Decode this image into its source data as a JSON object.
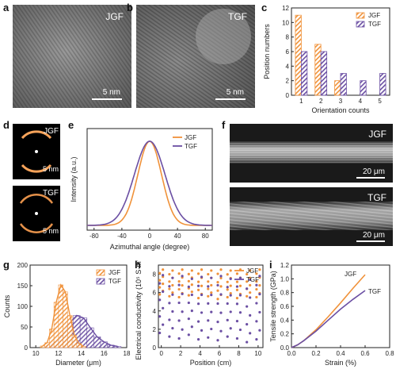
{
  "panels": {
    "a": {
      "letter": "a",
      "label": "JGF",
      "scale": "5 nm"
    },
    "b": {
      "letter": "b",
      "label": "TGF",
      "scale": "5 nm"
    },
    "d": {
      "letter": "d",
      "top_label": "JGF",
      "bottom_label": "TGF",
      "scale": "5 nm"
    },
    "f": {
      "letter": "f",
      "top_label": "JGF",
      "bottom_label": "TGF",
      "scale": "20 μm"
    },
    "c": {
      "letter": "c"
    },
    "e": {
      "letter": "e"
    },
    "g": {
      "letter": "g"
    },
    "h": {
      "letter": "h"
    },
    "i": {
      "letter": "i"
    }
  },
  "colors": {
    "jgf": "#f0923a",
    "tgf": "#6b4fa3"
  },
  "chart_data": [
    {
      "id": "c",
      "type": "bar",
      "xlabel": "Orientation counts",
      "ylabel": "Position numbers",
      "categories": [
        "1",
        "2",
        "3",
        "4",
        "5"
      ],
      "ylim": [
        0,
        12
      ],
      "yticks": [
        "0",
        "2",
        "4",
        "6",
        "8",
        "10",
        "12"
      ],
      "legend": "top-right",
      "series": [
        {
          "name": "JGF",
          "values": [
            11,
            7,
            2,
            0,
            0
          ]
        },
        {
          "name": "TGF",
          "values": [
            6,
            6,
            3,
            2,
            3
          ]
        }
      ]
    },
    {
      "id": "e",
      "type": "line",
      "xlabel": "Azimuthal angle (degree)",
      "ylabel": "Intensity (a.u.)",
      "xlim": [
        -90,
        90
      ],
      "xticks": [
        "-80",
        "-40",
        "0",
        "40",
        "80"
      ],
      "legend": "top-right",
      "series": [
        {
          "name": "JGF",
          "center": 0,
          "sigma": 17
        },
        {
          "name": "TGF",
          "center": 0,
          "sigma": 22
        }
      ]
    },
    {
      "id": "g",
      "type": "bar",
      "xlabel": "Diameter (μm)",
      "ylabel": "Counts",
      "xlim": [
        9.5,
        18
      ],
      "xticks": [
        "10",
        "12",
        "14",
        "16",
        "18"
      ],
      "ylim": [
        0,
        200
      ],
      "yticks": [
        "0",
        "50",
        "100",
        "150",
        "200"
      ],
      "legend": "top-right",
      "series": [
        {
          "name": "JGF",
          "bins": [
            10.6,
            11.0,
            11.4,
            11.8,
            12.2,
            12.6,
            13.0,
            13.4,
            13.8,
            14.2
          ],
          "values": [
            4,
            12,
            45,
            110,
            152,
            135,
            78,
            30,
            10,
            3
          ]
        },
        {
          "name": "TGF",
          "bins": [
            11.2,
            11.8,
            12.4,
            13.0,
            13.6,
            14.2,
            14.8,
            15.4,
            16.0,
            16.6,
            17.2
          ],
          "values": [
            5,
            14,
            30,
            60,
            78,
            72,
            48,
            26,
            14,
            6,
            3
          ]
        }
      ]
    },
    {
      "id": "h",
      "type": "scatter",
      "xlabel": "Position (cm)",
      "ylabel": "Electrical conductivity (10⁵ S·m⁻¹)",
      "xlim": [
        -0.3,
        10.5
      ],
      "xticks": [
        "0",
        "2",
        "4",
        "6",
        "8",
        "10"
      ],
      "ylim": [
        0,
        9
      ],
      "yticks": [
        "0",
        "2",
        "4",
        "6",
        "8"
      ],
      "legend": "top-right",
      "series": [
        {
          "name": "JGF",
          "x": [
            0,
            1,
            2,
            3,
            4,
            5,
            6,
            7,
            8,
            9,
            10
          ],
          "y_min": [
            5.8,
            5.6,
            5.5,
            5.7,
            5.4,
            5.6,
            5.3,
            5.5,
            5.4,
            5.6,
            5.5
          ],
          "y_max": [
            8.5,
            8.4,
            8.5,
            8.4,
            8.5,
            8.4,
            8.5,
            8.4,
            8.5,
            8.4,
            8.5
          ]
        },
        {
          "name": "TGF",
          "x": [
            0,
            1,
            2,
            3,
            4,
            5,
            6,
            7,
            8,
            9,
            10
          ],
          "y_min": [
            1.6,
            1.2,
            1.0,
            1.4,
            0.9,
            1.1,
            0.8,
            1.2,
            1.0,
            0.6,
            0.9
          ],
          "y_max": [
            7.9,
            7.6,
            7.8,
            7.5,
            7.7,
            7.6,
            7.8,
            7.5,
            7.6,
            7.4,
            7.8
          ]
        }
      ]
    },
    {
      "id": "i",
      "type": "line",
      "xlabel": "Strain (%)",
      "ylabel": "Tensile strength (GPa)",
      "xlim": [
        0,
        0.8
      ],
      "xticks": [
        "0.0",
        "0.2",
        "0.4",
        "0.6",
        "0.8"
      ],
      "ylim": [
        0,
        1.2
      ],
      "yticks": [
        "0.0",
        "0.2",
        "0.4",
        "0.6",
        "0.8",
        "1.0",
        "1.2"
      ],
      "labels": "inline",
      "series": [
        {
          "name": "JGF",
          "x": [
            0,
            0.05,
            0.1,
            0.2,
            0.3,
            0.4,
            0.5,
            0.6
          ],
          "y": [
            0,
            0.04,
            0.1,
            0.26,
            0.45,
            0.65,
            0.86,
            1.06
          ]
        },
        {
          "name": "TGF",
          "x": [
            0,
            0.05,
            0.1,
            0.2,
            0.3,
            0.4,
            0.5,
            0.6
          ],
          "y": [
            0,
            0.04,
            0.1,
            0.24,
            0.4,
            0.56,
            0.7,
            0.83
          ]
        }
      ]
    }
  ]
}
